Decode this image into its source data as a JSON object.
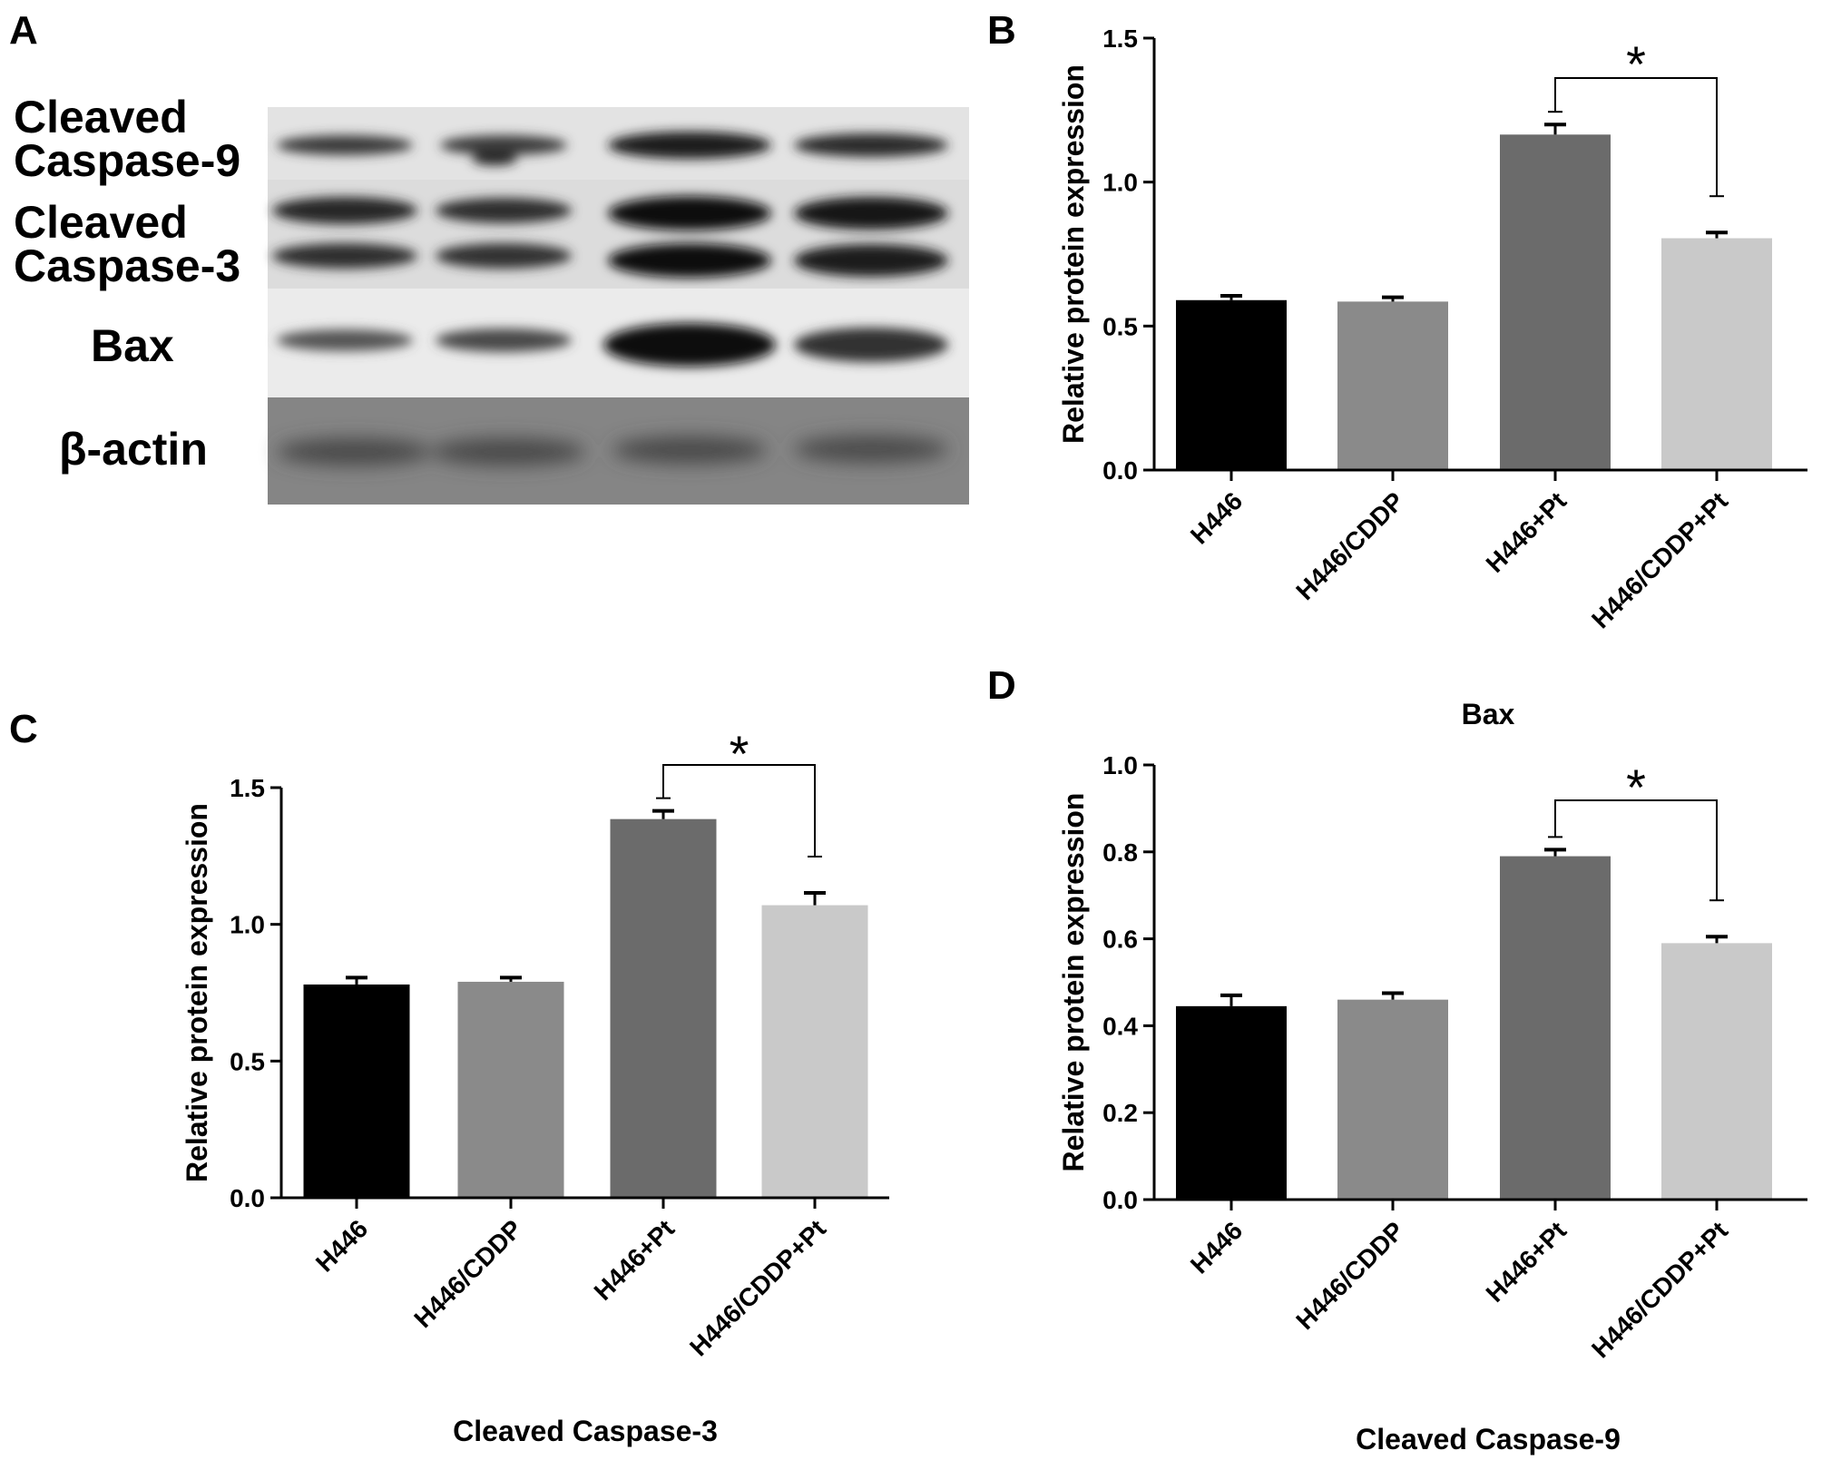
{
  "panels": {
    "a": {
      "letter": "A",
      "blot": {
        "bands": [
          {
            "label_lines": [
              "Cleaved",
              "Caspase-9"
            ]
          },
          {
            "label_lines": [
              "Cleaved",
              "Caspase-3"
            ]
          },
          {
            "label_lines": [
              "Bax"
            ]
          },
          {
            "label_lines": [
              "β-actin"
            ]
          }
        ]
      }
    },
    "b": {
      "letter": "B"
    },
    "c": {
      "letter": "C"
    },
    "d": {
      "letter": "D"
    }
  },
  "colors": {
    "bar_colors": [
      "#000000",
      "#8a8a8a",
      "#6b6b6b",
      "#c9c9c9"
    ],
    "axis": "#000000"
  },
  "chart_data": [
    {
      "panel": "B",
      "type": "bar",
      "categories": [
        "H446",
        "H446/CDDP",
        "H446+Pt",
        "H446/CDDP+Pt"
      ],
      "values": [
        0.59,
        0.585,
        1.165,
        0.805
      ],
      "errors": [
        0.015,
        0.015,
        0.035,
        0.02
      ],
      "ylabel": "Relative protein expression",
      "xlabel": "Bax",
      "ylim": [
        0,
        1.5
      ],
      "yticks": [
        "0.0",
        "0.5",
        "1.0",
        "1.5"
      ],
      "significance": {
        "between": [
          2,
          3
        ],
        "label": "*"
      },
      "grid": false
    },
    {
      "panel": "C",
      "type": "bar",
      "categories": [
        "H446",
        "H446/CDDP",
        "H446+Pt",
        "H446/CDDP+Pt"
      ],
      "values": [
        0.78,
        0.79,
        1.385,
        1.07
      ],
      "errors": [
        0.025,
        0.015,
        0.03,
        0.045
      ],
      "ylabel": "Relative protein expression",
      "xlabel": "Cleaved Caspase-3",
      "ylim": [
        0,
        1.5
      ],
      "yticks": [
        "0.0",
        "0.5",
        "1.0",
        "1.5"
      ],
      "significance": {
        "between": [
          2,
          3
        ],
        "label": "*"
      },
      "grid": false
    },
    {
      "panel": "D",
      "type": "bar",
      "categories": [
        "H446",
        "H446/CDDP",
        "H446+Pt",
        "H446/CDDP+Pt"
      ],
      "values": [
        0.445,
        0.46,
        0.79,
        0.59
      ],
      "errors": [
        0.025,
        0.015,
        0.015,
        0.015
      ],
      "ylabel": "Relative protein expression",
      "xlabel": "Cleaved Caspase-9",
      "ylim": [
        0,
        1.0
      ],
      "yticks": [
        "0.0",
        "0.2",
        "0.4",
        "0.6",
        "0.8",
        "1.0"
      ],
      "significance": {
        "between": [
          2,
          3
        ],
        "label": "*"
      },
      "grid": false
    }
  ]
}
